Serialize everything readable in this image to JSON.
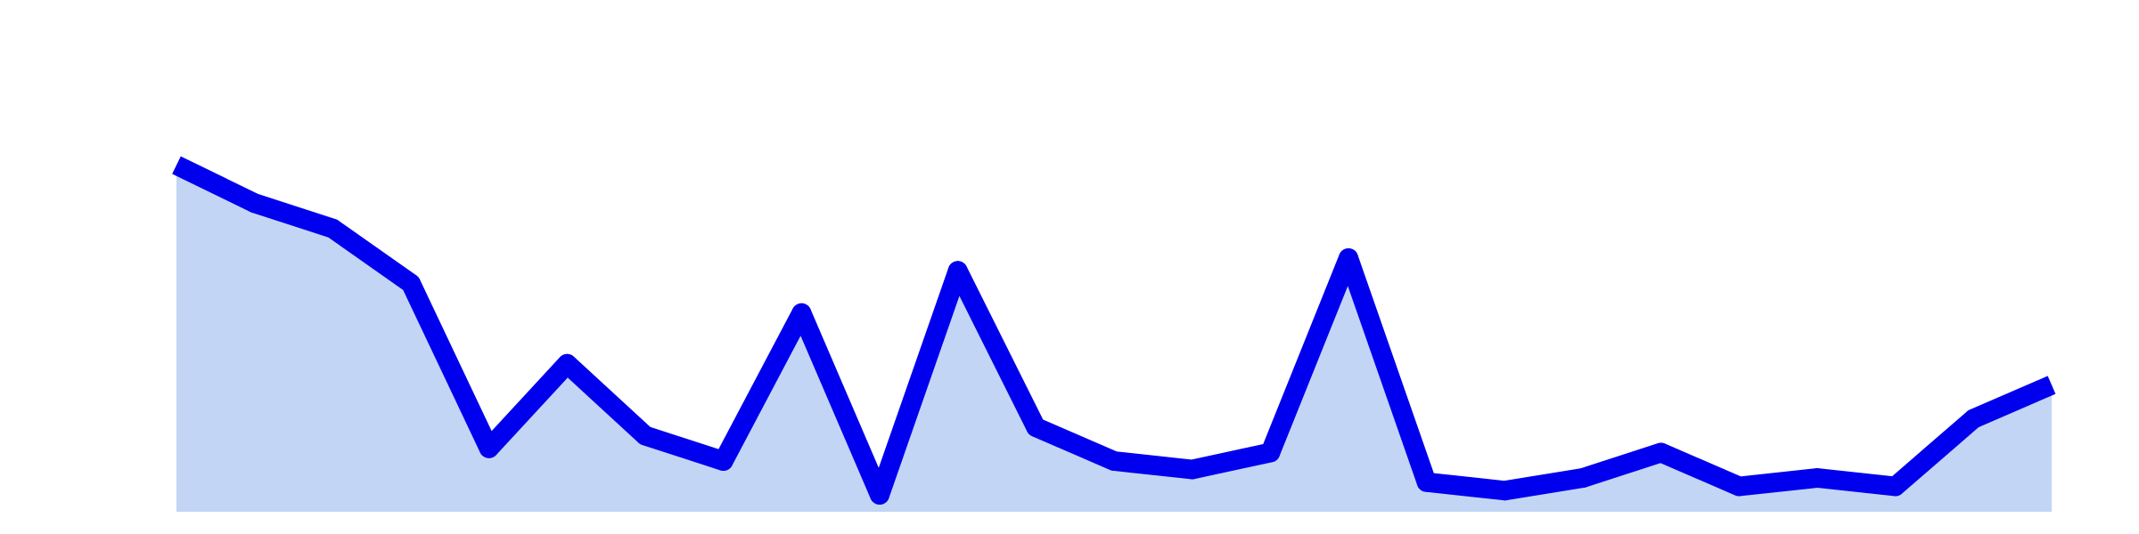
{
  "chart_data": {
    "type": "area",
    "title": "",
    "xlabel": "",
    "ylabel": "",
    "x": [
      0,
      1,
      2,
      3,
      4,
      5,
      6,
      7,
      8,
      9,
      10,
      11,
      12,
      13,
      14,
      15,
      16,
      17,
      18,
      19,
      20,
      21,
      22,
      23,
      24
    ],
    "series": [
      {
        "values": [
          82,
          73,
          67,
          54,
          15,
          35,
          18,
          12,
          47,
          4,
          57,
          20,
          12,
          10,
          14,
          60,
          7,
          5,
          8,
          14,
          6,
          8,
          6,
          22,
          30
        ],
        "line_color": "#0000ee",
        "fill_color": "#c2d5f5"
      }
    ],
    "ylim": [
      0,
      100
    ],
    "grid": false,
    "legend": "none",
    "axes_visible": false
  }
}
